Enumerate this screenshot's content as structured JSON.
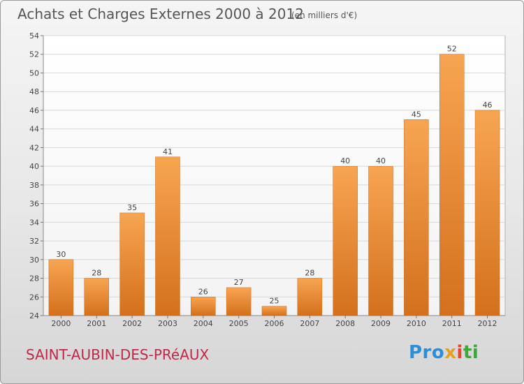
{
  "chart_data": {
    "type": "bar",
    "title": "Achats et Charges Externes 2000 à 2012",
    "subtitle": "(en milliers d'€)",
    "categories": [
      "2000",
      "2001",
      "2002",
      "2003",
      "2004",
      "2005",
      "2006",
      "2007",
      "2008",
      "2009",
      "2010",
      "2011",
      "2012"
    ],
    "values": [
      30,
      28,
      35,
      41,
      26,
      27,
      25,
      28,
      40,
      40,
      45,
      52,
      46
    ],
    "ylim": [
      24,
      54
    ],
    "yticks": [
      24,
      26,
      28,
      30,
      32,
      34,
      36,
      38,
      40,
      42,
      44,
      46,
      48,
      50,
      52,
      54
    ],
    "grid": true,
    "bar_color": "#f0933a"
  },
  "footer": {
    "commune": "SAINT-AUBIN-DES-PRéAUX",
    "logo": [
      "Pro",
      "x",
      "i",
      "ti"
    ]
  }
}
